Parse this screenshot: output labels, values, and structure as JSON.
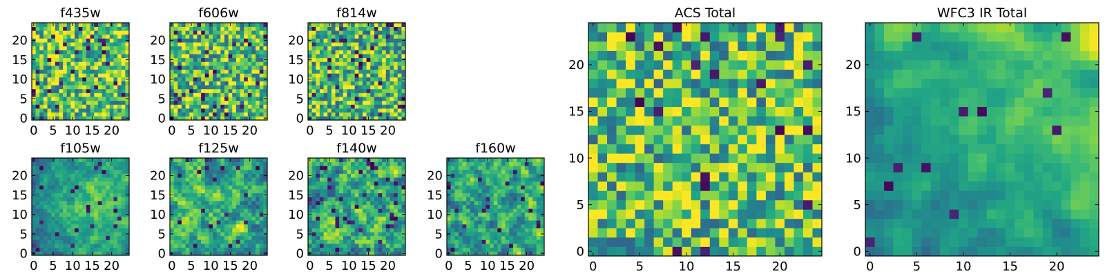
{
  "figure": {
    "colormap": "viridis",
    "background": "#ffffff"
  },
  "chart_data": [
    {
      "name": "f435w",
      "type": "heatmap",
      "title": "f435w",
      "grid_size": [
        25,
        25
      ],
      "xlim": [
        -0.5,
        24.5
      ],
      "ylim": [
        -0.5,
        24.5
      ],
      "xticks": [
        0,
        5,
        10,
        15,
        20
      ],
      "xtick_labels": [
        "0",
        "5",
        "10",
        "15",
        "20"
      ],
      "yticks": [
        0,
        5,
        10,
        15,
        20
      ],
      "ytick_labels": [
        "0",
        "5",
        "10",
        "15",
        "20"
      ],
      "colormap": "viridis",
      "pattern": {
        "seed": 11,
        "bias": 0.72,
        "smooth": 0,
        "dark_fraction": 0.06,
        "gradient": null
      }
    },
    {
      "name": "f606w",
      "type": "heatmap",
      "title": "f606w",
      "grid_size": [
        25,
        25
      ],
      "xlim": [
        -0.5,
        24.5
      ],
      "ylim": [
        -0.5,
        24.5
      ],
      "xticks": [
        0,
        5,
        10,
        15,
        20
      ],
      "xtick_labels": [
        "0",
        "5",
        "10",
        "15",
        "20"
      ],
      "yticks": [
        0,
        5,
        10,
        15,
        20
      ],
      "ytick_labels": [
        "0",
        "5",
        "10",
        "15",
        "20"
      ],
      "colormap": "viridis",
      "pattern": {
        "seed": 23,
        "bias": 0.7,
        "smooth": 0,
        "dark_fraction": 0.05,
        "gradient": null
      }
    },
    {
      "name": "f814w",
      "type": "heatmap",
      "title": "f814w",
      "grid_size": [
        25,
        25
      ],
      "xlim": [
        -0.5,
        24.5
      ],
      "ylim": [
        -0.5,
        24.5
      ],
      "xticks": [
        0,
        5,
        10,
        15,
        20
      ],
      "xtick_labels": [
        "0",
        "5",
        "10",
        "15",
        "20"
      ],
      "yticks": [
        0,
        5,
        10,
        15,
        20
      ],
      "ytick_labels": [
        "0",
        "5",
        "10",
        "15",
        "20"
      ],
      "colormap": "viridis",
      "pattern": {
        "seed": 37,
        "bias": 0.68,
        "smooth": 0,
        "dark_fraction": 0.06,
        "gradient": null
      }
    },
    {
      "name": "f105w",
      "type": "heatmap",
      "title": "f105w",
      "grid_size": [
        25,
        25
      ],
      "xlim": [
        -0.5,
        24.5
      ],
      "ylim": [
        -0.5,
        24.5
      ],
      "xticks": [
        0,
        5,
        10,
        15,
        20
      ],
      "xtick_labels": [
        "0",
        "5",
        "10",
        "15",
        "20"
      ],
      "yticks": [
        0,
        5,
        10,
        15,
        20
      ],
      "ytick_labels": [
        "0",
        "5",
        "10",
        "15",
        "20"
      ],
      "colormap": "viridis",
      "pattern": {
        "seed": 41,
        "bias": 0.62,
        "smooth": 1,
        "dark_fraction": 0.04,
        "gradient": "center"
      }
    },
    {
      "name": "f125w",
      "type": "heatmap",
      "title": "f125w",
      "grid_size": [
        25,
        25
      ],
      "xlim": [
        -0.5,
        24.5
      ],
      "ylim": [
        -0.5,
        24.5
      ],
      "xticks": [
        0,
        5,
        10,
        15,
        20
      ],
      "xtick_labels": [
        "0",
        "5",
        "10",
        "15",
        "20"
      ],
      "yticks": [
        0,
        5,
        10,
        15,
        20
      ],
      "ytick_labels": [
        "0",
        "5",
        "10",
        "15",
        "20"
      ],
      "colormap": "viridis",
      "pattern": {
        "seed": 53,
        "bias": 0.62,
        "smooth": 1,
        "dark_fraction": 0.04,
        "gradient": null
      }
    },
    {
      "name": "f140w",
      "type": "heatmap",
      "title": "f140w",
      "grid_size": [
        25,
        25
      ],
      "xlim": [
        -0.5,
        24.5
      ],
      "ylim": [
        -0.5,
        24.5
      ],
      "xticks": [
        0,
        5,
        10,
        15,
        20
      ],
      "xtick_labels": [
        "0",
        "5",
        "10",
        "15",
        "20"
      ],
      "yticks": [
        0,
        5,
        10,
        15,
        20
      ],
      "ytick_labels": [
        "0",
        "5",
        "10",
        "15",
        "20"
      ],
      "colormap": "viridis",
      "pattern": {
        "seed": 67,
        "bias": 0.6,
        "smooth": 1,
        "dark_fraction": 0.05,
        "gradient": null
      }
    },
    {
      "name": "f160w",
      "type": "heatmap",
      "title": "f160w",
      "grid_size": [
        25,
        25
      ],
      "xlim": [
        -0.5,
        24.5
      ],
      "ylim": [
        -0.5,
        24.5
      ],
      "xticks": [
        0,
        5,
        10,
        15,
        20
      ],
      "xtick_labels": [
        "0",
        "5",
        "10",
        "15",
        "20"
      ],
      "yticks": [
        0,
        5,
        10,
        15,
        20
      ],
      "ytick_labels": [
        "0",
        "5",
        "10",
        "15",
        "20"
      ],
      "colormap": "viridis",
      "pattern": {
        "seed": 79,
        "bias": 0.58,
        "smooth": 1,
        "dark_fraction": 0.05,
        "gradient": null
      }
    },
    {
      "name": "acs-total",
      "type": "heatmap",
      "title": "ACS Total",
      "grid_size": [
        25,
        25
      ],
      "xlim": [
        -0.5,
        24.5
      ],
      "ylim": [
        -0.5,
        24.5
      ],
      "xticks": [
        0,
        5,
        10,
        15,
        20
      ],
      "xtick_labels": [
        "0",
        "5",
        "10",
        "15",
        "20"
      ],
      "yticks": [
        0,
        5,
        10,
        15,
        20
      ],
      "ytick_labels": [
        "0",
        "5",
        "10",
        "15",
        "20"
      ],
      "colormap": "viridis",
      "pattern": {
        "seed": 97,
        "bias": 0.7,
        "smooth": 0,
        "dark_fraction": 0.035,
        "gradient": null
      }
    },
    {
      "name": "wfc3-ir-total",
      "type": "heatmap",
      "title": "WFC3 IR Total",
      "grid_size": [
        25,
        25
      ],
      "xlim": [
        -0.5,
        24.5
      ],
      "ylim": [
        -0.5,
        24.5
      ],
      "xticks": [
        0,
        5,
        10,
        15,
        20
      ],
      "xtick_labels": [
        "0",
        "5",
        "10",
        "15",
        "20"
      ],
      "yticks": [
        0,
        5,
        10,
        15,
        20
      ],
      "ytick_labels": [
        "0",
        "5",
        "10",
        "15",
        "20"
      ],
      "colormap": "viridis",
      "pattern": {
        "seed": 113,
        "bias": 0.6,
        "smooth": 2,
        "dark_fraction": 0.02,
        "gradient": "top-right"
      }
    }
  ]
}
